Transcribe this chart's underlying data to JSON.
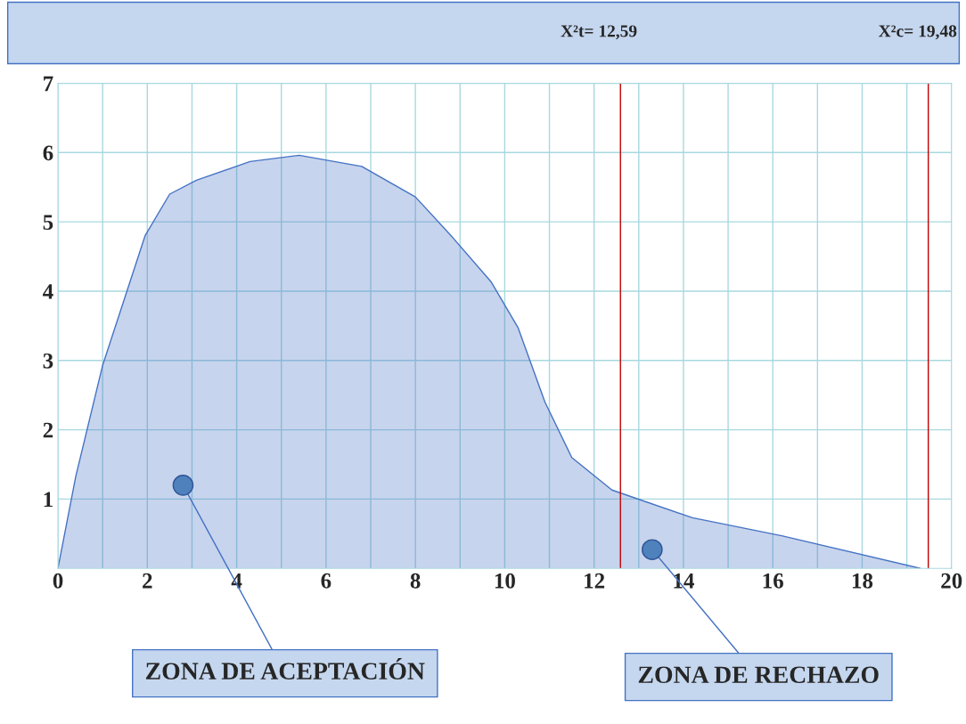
{
  "chart_data": {
    "type": "area",
    "annotations": [
      "X²t= 12,59",
      "X²c= 19,48",
      {
        "text": "ZONA DE ACEPTACIÓN",
        "x": 2.8,
        "y": 1.2
      },
      {
        "text": "ZONA DE RECHAZO",
        "x": 13.3,
        "y": 0.27
      }
    ],
    "series": [
      {
        "color": "#4472c4",
        "x": [
          0,
          0.4,
          1.0,
          1.95,
          2.5,
          3.1,
          4.3,
          5.4,
          6.8,
          8.0,
          8.8,
          9.7,
          10.3,
          10.9,
          11.5,
          12.4,
          14.2,
          16.2,
          19.3
        ],
        "values": [
          0,
          1.33,
          2.93,
          4.8,
          5.4,
          5.6,
          5.87,
          5.96,
          5.8,
          5.36,
          4.8,
          4.13,
          3.47,
          2.4,
          1.6,
          1.13,
          0.73,
          0.47,
          0
        ]
      }
    ],
    "xlim": [
      0,
      20
    ],
    "ylim": [
      0,
      7
    ],
    "xticks": [
      0,
      {
        "value": 1,
        "label": null
      },
      2,
      {
        "value": 3,
        "label": null
      },
      4,
      {
        "value": 5,
        "label": null
      },
      6,
      {
        "value": 7,
        "label": null
      },
      8,
      {
        "value": 9,
        "label": null
      },
      10,
      {
        "value": 11,
        "label": null
      },
      12,
      {
        "value": 13,
        "label": null
      },
      14,
      {
        "value": 15,
        "label": null
      },
      16,
      {
        "value": 17,
        "label": null
      },
      18,
      {
        "value": 19,
        "label": null
      },
      20
    ],
    "yticks": [
      1,
      2,
      3,
      4,
      5,
      6,
      7
    ],
    "ref_lines": [
      {
        "axis": "x",
        "value": 12.59,
        "color": "#c00000"
      },
      {
        "axis": "x",
        "value": 19.48,
        "color": "#c00000"
      }
    ],
    "grid": true
  }
}
